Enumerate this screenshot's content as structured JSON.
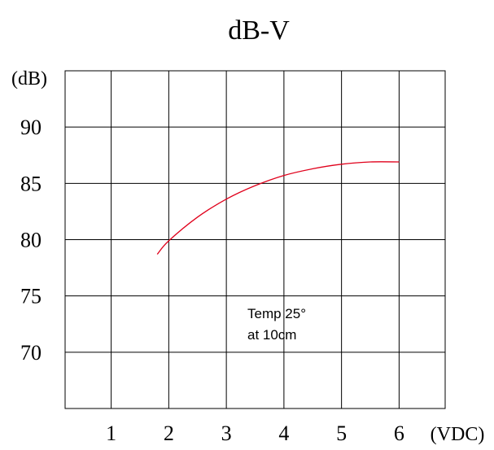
{
  "chart_data": {
    "type": "line",
    "title": "dB-V",
    "xlabel": "(VDC)",
    "ylabel": "(dB)",
    "x_ticks": [
      "1",
      "2",
      "3",
      "4",
      "5",
      "6"
    ],
    "y_ticks": [
      "90",
      "85",
      "80",
      "75",
      "70"
    ],
    "xlim": [
      0.2,
      6.8
    ],
    "ylim": [
      65,
      95
    ],
    "grid": true,
    "annotation": [
      "Temp 25°",
      "at 10cm"
    ],
    "series": [
      {
        "color": "#e0001b",
        "x": [
          1.8,
          2.0,
          2.5,
          3.0,
          3.5,
          4.0,
          4.5,
          5.0,
          5.5,
          6.0
        ],
        "y": [
          78.7,
          79.9,
          82.0,
          83.6,
          84.8,
          85.7,
          86.3,
          86.7,
          86.9,
          86.9
        ]
      }
    ]
  }
}
